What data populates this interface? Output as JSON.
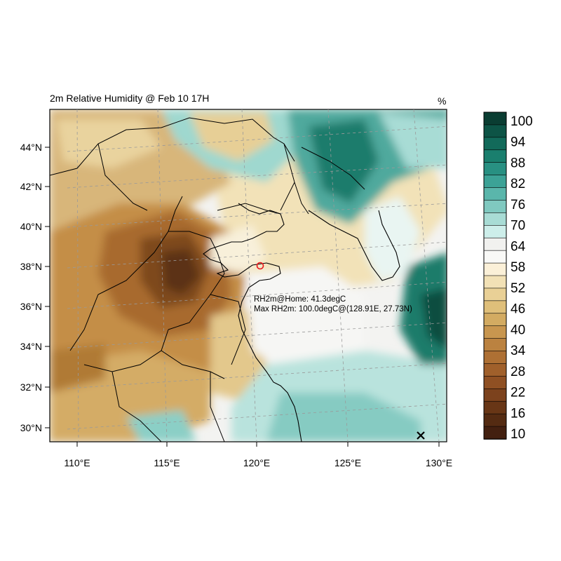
{
  "figure": {
    "title": "2m Relative Humidity @ Feb 10 17H",
    "units": "%"
  },
  "axes": {
    "lat_labels": [
      "44°N",
      "42°N",
      "40°N",
      "38°N",
      "36°N",
      "34°N",
      "32°N",
      "30°N"
    ],
    "lon_labels": [
      "110°E",
      "115°E",
      "120°E",
      "125°E",
      "130°E"
    ]
  },
  "annotations": {
    "home": "RH2m@Home: 41.3degC",
    "max": "Max RH2m: 100.0degC@(128.91E, 27.73N)"
  },
  "markers": {
    "home": {
      "lon": 120.15,
      "lat": 38.05,
      "color": "#e8161b",
      "icon": "circle-marker-icon"
    },
    "max": {
      "lon": 128.91,
      "lat": 27.73,
      "icon": "x-marker-icon"
    }
  },
  "colorbar": {
    "labels": [
      "100",
      "94",
      "88",
      "82",
      "76",
      "70",
      "64",
      "58",
      "52",
      "46",
      "40",
      "34",
      "28",
      "22",
      "16",
      "10"
    ],
    "colors": [
      "#0a3d32",
      "#0d5446",
      "#126a5a",
      "#1a7f6e",
      "#289082",
      "#3ca296",
      "#5ab6ab",
      "#80c9c0",
      "#a8dcd5",
      "#cdeeea",
      "#f1f1ef",
      "#f9f9f7",
      "#fbf0d8",
      "#f2e1b6",
      "#e9d096",
      "#dfbf7a",
      "#d3ab62",
      "#c8964f",
      "#bb8240",
      "#ae7034",
      "#a0602b",
      "#8f5023",
      "#7c421d",
      "#683616",
      "#542b12",
      "#432010"
    ]
  }
}
